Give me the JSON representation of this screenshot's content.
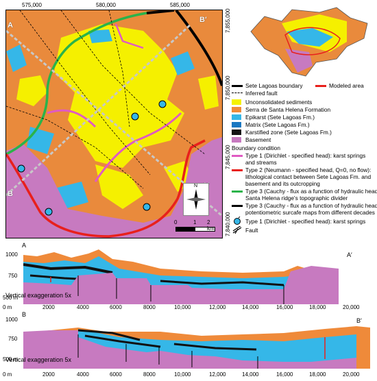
{
  "map": {
    "top_ticks": [
      "575,000",
      "580,000",
      "585,000"
    ],
    "right_ticks": [
      "7,855,000",
      "7,850,000",
      "7,845,000",
      "7,840,000"
    ],
    "section_labels": {
      "a": "A",
      "a_prime": "A′",
      "b": "B",
      "b_prime": "B′"
    },
    "north": "N",
    "scale": {
      "start": "0",
      "mid": "1",
      "end": "2 km"
    }
  },
  "legend": {
    "sete_lagoas_boundary": "Sete Lagoas boundary",
    "modeled_area": "Modeled area",
    "inferred_fault": "Inferred fault",
    "units": [
      {
        "label": "Unconsolidated sediments",
        "color": "#f5f200"
      },
      {
        "label": "Serra de Santa Helena Formation",
        "color": "#ef8a3a"
      },
      {
        "label": "Epikarst (Sete Lagoas Fm.)",
        "color": "#35b7e8"
      },
      {
        "label": "Matrix (Sete Lagoas Fm.)",
        "color": "#1a78c2"
      },
      {
        "label": "Karstified zone (Sete Lagoas Fm.)",
        "color": "#141414"
      },
      {
        "label": "Basement",
        "color": "#c77ac0"
      }
    ],
    "boundary_condition_title": "Boundary condition",
    "bc": [
      {
        "l1": "Type 1 (Dirichlet - specified head): karst springs",
        "l2": "and streams",
        "color": "#e05ac2"
      },
      {
        "l1": "Type 2 (Neumann - specified head, Q=0, no flow):",
        "l2": "lithological contact between Sete Lagoas Fm. and",
        "l3": "basement and its outcropping",
        "color": "#e8201c"
      },
      {
        "l1": "Type 3 (Cauchy - flux as a function of hydraulic head):",
        "l2": "Santa Helena ridge's topographic divider",
        "color": "#2ab34a"
      },
      {
        "l1": "Type 3 (Cauchy - flux as a function of hydraulic head):",
        "l2": "potentiometric surcafe maps from different decades",
        "color": "#000000"
      }
    ],
    "springs": "Type 1 (Dirichlet - specified head): karst springs",
    "fault": "Fault"
  },
  "sections": {
    "a": {
      "start": "A",
      "end": "A′",
      "y_ticks": [
        "1000",
        "750",
        "500 m"
      ],
      "x_ticks": [
        "0 m",
        "2000",
        "4000",
        "6000",
        "8000",
        "10,000",
        "12,000",
        "14,000",
        "16,000",
        "18,000",
        "20,000"
      ],
      "exaggeration": "Vertical exaggeration 5x"
    },
    "b": {
      "start": "B",
      "end": "B′",
      "y_ticks": [
        "1000",
        "750",
        "500 m"
      ],
      "x_ticks": [
        "0 m",
        "2000",
        "4000",
        "6000",
        "8000",
        "10,000",
        "12,000",
        "14,000",
        "16,000",
        "18,000",
        "20,000"
      ],
      "exaggeration": "Vertical exaggeration 5x"
    }
  }
}
